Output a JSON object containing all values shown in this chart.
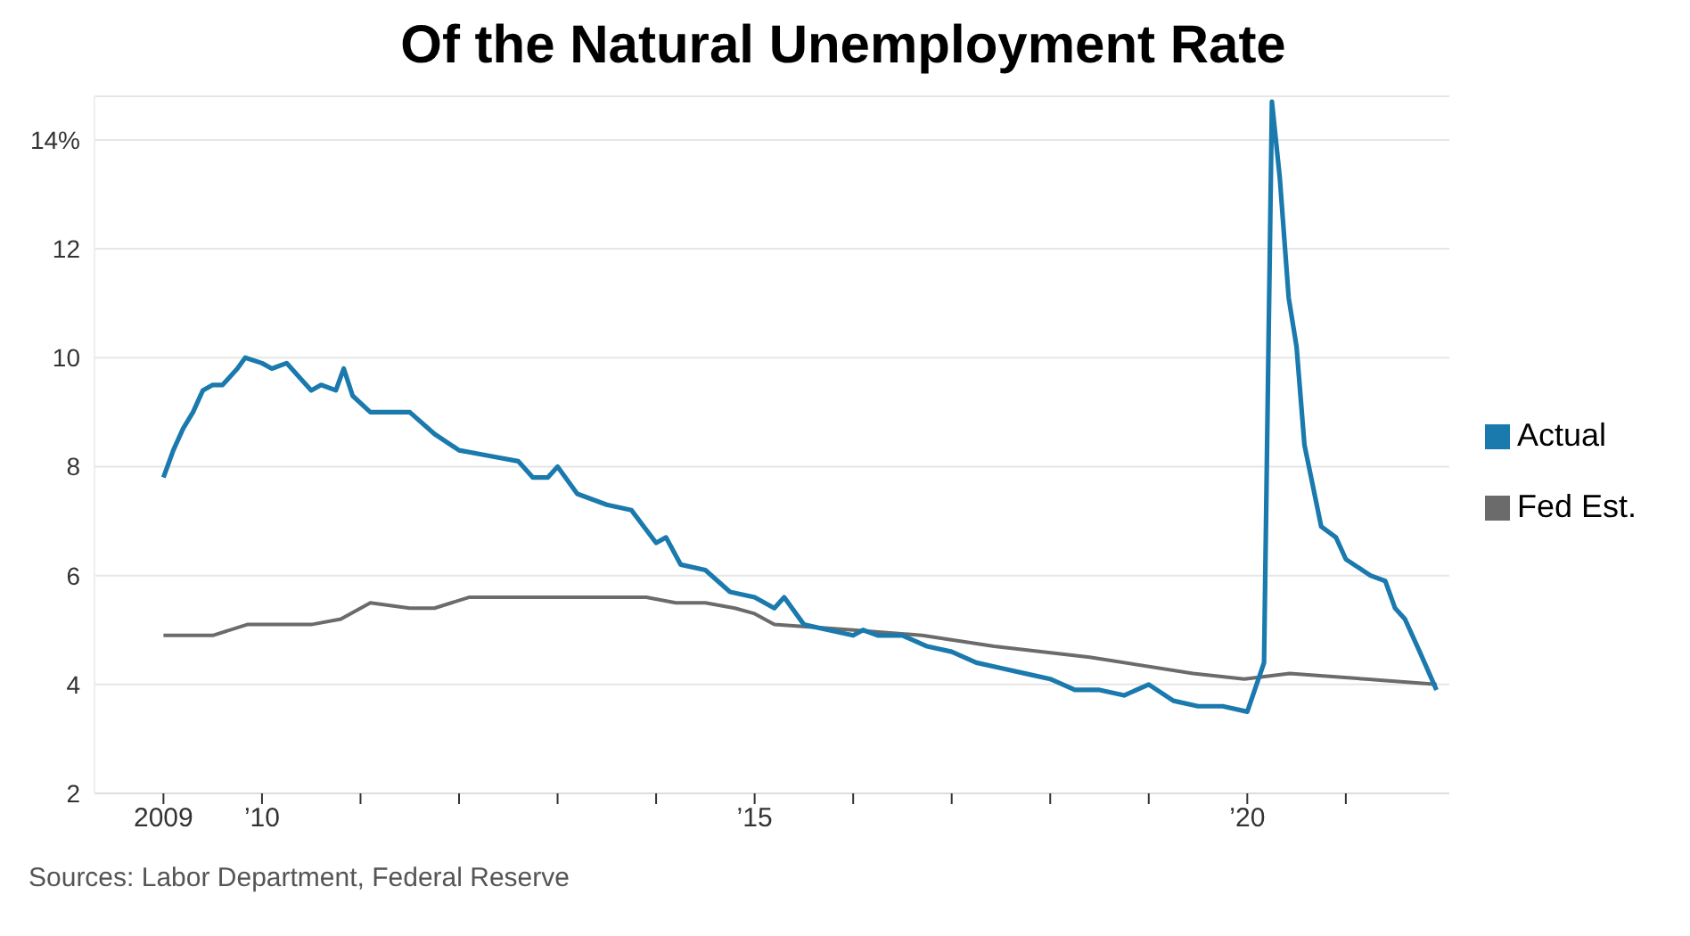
{
  "chart_data": {
    "type": "line",
    "title": "Of the Natural Unemployment Rate",
    "annotations": [
      "Sources: Labor Department, Federal Reserve"
    ],
    "xlim": [
      2008.3,
      2022.05
    ],
    "xticks": [
      {
        "value": 2009,
        "label": "2009"
      },
      {
        "value": 2010,
        "label": "’10"
      },
      {
        "value": 2011,
        "label": null
      },
      {
        "value": 2012,
        "label": null
      },
      {
        "value": 2013,
        "label": null
      },
      {
        "value": 2014,
        "label": null
      },
      {
        "value": 2015,
        "label": "’15"
      },
      {
        "value": 2016,
        "label": null
      },
      {
        "value": 2017,
        "label": null
      },
      {
        "value": 2018,
        "label": null
      },
      {
        "value": 2019,
        "label": null
      },
      {
        "value": 2020,
        "label": "’20"
      },
      {
        "value": 2021,
        "label": null
      }
    ],
    "ylim": [
      2,
      14.8
    ],
    "yticks": [
      2,
      4,
      6,
      8,
      10,
      {
        "value": 12,
        "label": "12"
      },
      {
        "value": 14,
        "label": "14%"
      }
    ],
    "grid": "y",
    "legend": "right",
    "marker": "none",
    "line_style": "solid",
    "series": [
      {
        "name": "Fed Est.",
        "color": "#6b6b6b",
        "x": [
          2009,
          2009.5,
          2009.85,
          2010.5,
          2010.8,
          2011.1,
          2011.5,
          2011.75,
          2012.1,
          2013.9,
          2014.2,
          2014.5,
          2014.8,
          2015.0,
          2015.2,
          2016.0,
          2016.7,
          2017.43,
          2018.4,
          2019.45,
          2019.97,
          2020.43,
          2021.2,
          2021.92
        ],
        "values": [
          4.9,
          4.9,
          5.1,
          5.1,
          5.2,
          5.5,
          5.4,
          5.4,
          5.6,
          5.6,
          5.5,
          5.5,
          5.4,
          5.3,
          5.1,
          5.0,
          4.9,
          4.7,
          4.5,
          4.2,
          4.1,
          4.2,
          4.1,
          4.0
        ]
      },
      {
        "name": "Actual",
        "color": "#1a7aad",
        "x": [
          2009,
          2009.1,
          2009.2,
          2009.3,
          2009.4,
          2009.5,
          2009.6,
          2009.75,
          2009.83,
          2010.0,
          2010.1,
          2010.25,
          2010.4,
          2010.5,
          2010.6,
          2010.75,
          2010.83,
          2010.92,
          2011.1,
          2011.3,
          2011.5,
          2011.75,
          2012.0,
          2012.3,
          2012.6,
          2012.75,
          2012.9,
          2013.0,
          2013.2,
          2013.5,
          2013.75,
          2014.0,
          2014.1,
          2014.25,
          2014.5,
          2014.75,
          2015.0,
          2015.2,
          2015.3,
          2015.5,
          2015.75,
          2016.0,
          2016.1,
          2016.25,
          2016.5,
          2016.75,
          2017.0,
          2017.25,
          2017.5,
          2017.75,
          2018.0,
          2018.25,
          2018.5,
          2018.75,
          2019.0,
          2019.25,
          2019.5,
          2019.75,
          2020.0,
          2020.17,
          2020.25,
          2020.33,
          2020.42,
          2020.5,
          2020.58,
          2020.75,
          2020.9,
          2021.0,
          2021.25,
          2021.4,
          2021.5,
          2021.6,
          2021.75,
          2021.92
        ],
        "values": [
          7.8,
          8.3,
          8.7,
          9.0,
          9.4,
          9.5,
          9.5,
          9.8,
          10.0,
          9.9,
          9.8,
          9.9,
          9.6,
          9.4,
          9.5,
          9.4,
          9.8,
          9.3,
          9.0,
          9.0,
          9.0,
          8.6,
          8.3,
          8.2,
          8.1,
          7.8,
          7.8,
          8.0,
          7.5,
          7.3,
          7.2,
          6.6,
          6.7,
          6.2,
          6.1,
          5.7,
          5.6,
          5.4,
          5.6,
          5.1,
          5.0,
          4.9,
          5.0,
          4.9,
          4.9,
          4.7,
          4.6,
          4.4,
          4.3,
          4.2,
          4.1,
          3.9,
          3.9,
          3.8,
          4.0,
          3.7,
          3.6,
          3.6,
          3.5,
          4.4,
          14.7,
          13.3,
          11.1,
          10.2,
          8.4,
          6.9,
          6.7,
          6.3,
          6.0,
          5.9,
          5.4,
          5.2,
          4.6,
          3.9
        ]
      }
    ]
  }
}
